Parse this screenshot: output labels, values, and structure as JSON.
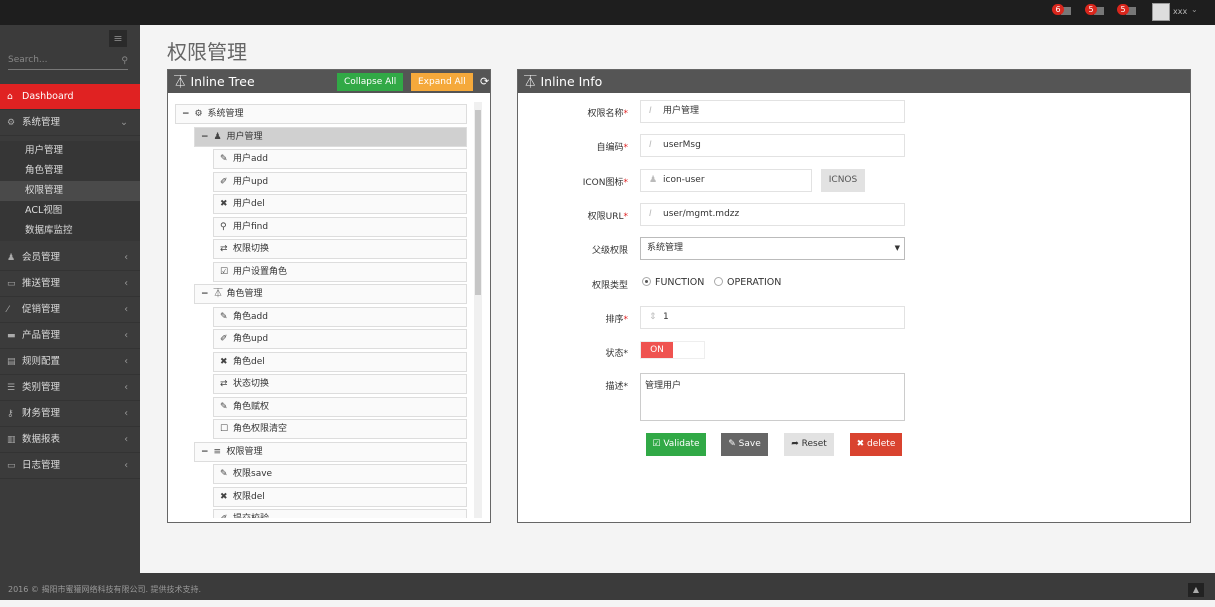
{
  "topbar": {
    "notifications": [
      {
        "count": "6",
        "icon": "warning-icon"
      },
      {
        "count": "5",
        "icon": "envelope-icon"
      },
      {
        "count": "5",
        "icon": "tasks-icon"
      }
    ],
    "username": "xxx"
  },
  "sidebar": {
    "search_placeholder": "Search...",
    "dashboard": "Dashboard",
    "system": "系统管理",
    "system_items": [
      "用户管理",
      "角色管理",
      "权限管理",
      "ACL视图",
      "数据库监控"
    ],
    "groups": [
      "会员管理",
      "推送管理",
      "促销管理",
      "产品管理",
      "规则配置",
      "类别管理",
      "财务管理",
      "数据报表",
      "日志管理"
    ]
  },
  "page_title": "权限管理",
  "tree": {
    "title": "Inline Tree",
    "collapse_all": "Collapse All",
    "expand_all": "Expand All",
    "nodes": [
      {
        "label": "系统管理",
        "icon": "cogs-icon",
        "level": 0
      },
      {
        "label": "用户管理",
        "icon": "user-icon",
        "level": 1,
        "selected": true
      },
      {
        "label": "用户add",
        "icon": "pencil-icon",
        "level": 2
      },
      {
        "label": "用户upd",
        "icon": "edit-icon",
        "level": 2
      },
      {
        "label": "用户del",
        "icon": "times-icon",
        "level": 2
      },
      {
        "label": "用户find",
        "icon": "search-icon",
        "level": 2
      },
      {
        "label": "权限切换",
        "icon": "retweet-icon",
        "level": 2
      },
      {
        "label": "用户设置角色",
        "icon": "check-square-icon",
        "level": 2
      },
      {
        "label": "角色管理",
        "icon": "sitemap-icon",
        "level": 1
      },
      {
        "label": "角色add",
        "icon": "pencil-icon",
        "level": 2
      },
      {
        "label": "角色upd",
        "icon": "edit-icon",
        "level": 2
      },
      {
        "label": "角色del",
        "icon": "times-icon",
        "level": 2
      },
      {
        "label": "状态切换",
        "icon": "retweet-icon",
        "level": 2
      },
      {
        "label": "角色赋权",
        "icon": "pencil-icon",
        "level": 2
      },
      {
        "label": "角色权限清空",
        "icon": "square-icon",
        "level": 2
      },
      {
        "label": "权限管理",
        "icon": "list-icon",
        "level": 1
      },
      {
        "label": "权限save",
        "icon": "pencil-icon",
        "level": 2
      },
      {
        "label": "权限del",
        "icon": "times-icon",
        "level": 2
      },
      {
        "label": "提交校验",
        "icon": "edit-icon",
        "level": 2
      }
    ]
  },
  "info": {
    "title": "Inline Info",
    "name_label": "权限名称",
    "name_value": "用户管理",
    "code_label": "自编码",
    "code_value": "userMsg",
    "icon_label": "ICON图标",
    "icon_value": "icon-user",
    "icnos": "ICNOS",
    "url_label": "权限URL",
    "url_value": "user/mgmt.mdzz",
    "parent_label": "父级权限",
    "parent_value": "系统管理",
    "type_label": "权限类型",
    "type_options": [
      "FUNCTION",
      "OPERATION"
    ],
    "type_selected": "FUNCTION",
    "order_label": "排序",
    "order_value": "1",
    "status_label": "状态",
    "status_value": "ON",
    "desc_label": "描述",
    "desc_value": "管理用户",
    "validate": "Validate",
    "save": "Save",
    "reset": "Reset",
    "delete": "delete"
  },
  "footer": "2016 © 揭阳市蜜獾网络科技有限公司. 提供技术支持."
}
